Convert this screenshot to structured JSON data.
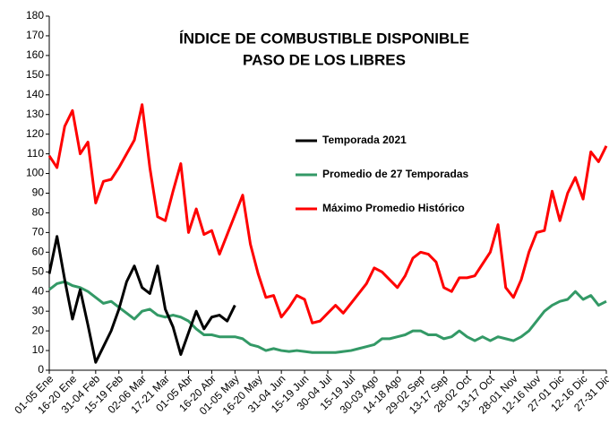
{
  "chart_data": {
    "type": "line",
    "title": "ÍNDICE DE COMBUSTIBLE DISPONIBLE",
    "subtitle": "PASO DE LOS LIBRES",
    "categories": [
      "01-05 Ene",
      null,
      null,
      "16-20 Ene",
      null,
      null,
      "31-04 Feb",
      null,
      null,
      "15-19 Feb",
      null,
      null,
      "02-06 Mar",
      null,
      null,
      "17-21 Mar",
      null,
      null,
      "01-05 Abr",
      null,
      null,
      "16-20 Abr",
      null,
      null,
      "01-05 May",
      null,
      null,
      "16-20 May",
      null,
      null,
      "31-04 Jun",
      null,
      null,
      "15-19 Jun",
      null,
      null,
      "30-04 Jul",
      null,
      null,
      "15-19 Jul",
      null,
      null,
      "30-03 Ago",
      null,
      null,
      "14-18 Ago",
      null,
      null,
      "29-02 Sep",
      null,
      null,
      "13-17 Sep",
      null,
      null,
      "28-02 Oct",
      null,
      null,
      "13-17 Oct",
      null,
      null,
      "28-01 Nov",
      null,
      null,
      "12-16 Nov",
      null,
      null,
      "27-01 Dic",
      null,
      null,
      "12-16 Dic",
      null,
      null,
      "27-31 Dic"
    ],
    "series": [
      {
        "name": "Temporada 2021",
        "color": "#000000",
        "values": [
          49,
          68,
          46,
          26,
          41,
          23,
          4,
          12,
          20,
          31,
          45,
          53,
          42,
          39,
          53,
          31,
          22,
          8,
          19,
          30,
          21,
          27,
          28,
          25,
          33,
          null,
          null,
          null,
          null,
          null,
          null,
          null,
          null,
          null,
          null,
          null,
          null,
          null,
          null,
          null,
          null,
          null,
          null,
          null,
          null,
          null,
          null,
          null,
          null,
          null,
          null,
          null,
          null,
          null,
          null,
          null,
          null,
          null,
          null,
          null,
          null,
          null,
          null,
          null,
          null,
          null,
          null,
          null,
          null,
          null,
          null,
          null,
          null
        ]
      },
      {
        "name": "Promedio de 27 Temporadas",
        "color": "#339966",
        "values": [
          41,
          44,
          45,
          43,
          42,
          40,
          37,
          34,
          35,
          32,
          29,
          26,
          30,
          31,
          28,
          27,
          28,
          27,
          25,
          21,
          18,
          18,
          17,
          17,
          17,
          16,
          13,
          12,
          10,
          11,
          10,
          9.5,
          10,
          9.5,
          9,
          9,
          9,
          9,
          9.5,
          10,
          11,
          12,
          13,
          16,
          16,
          17,
          18,
          20,
          20,
          18,
          18,
          16,
          17,
          20,
          17,
          15,
          17,
          15,
          17,
          16,
          15,
          17,
          20,
          25,
          30,
          33,
          35,
          36,
          40,
          36,
          38,
          33,
          35
        ]
      },
      {
        "name": "Máximo Promedio Histórico",
        "color": "#ff0000",
        "values": [
          109,
          103,
          124,
          132,
          110,
          116,
          85,
          96,
          97,
          103,
          110,
          117,
          135,
          103,
          78,
          76,
          91,
          105,
          70,
          82,
          69,
          71,
          59,
          69,
          79,
          89,
          64,
          49,
          37,
          38,
          27,
          32,
          38,
          36,
          24,
          25,
          29,
          33,
          29,
          34,
          39,
          44,
          52,
          50,
          46,
          42,
          48,
          57,
          60,
          59,
          55,
          42,
          40,
          47,
          47,
          48,
          54,
          60,
          74,
          42,
          37,
          46,
          60,
          70,
          71,
          91,
          76,
          90,
          98,
          87,
          111,
          106,
          114
        ]
      }
    ],
    "ylim": [
      0,
      180
    ],
    "yticks": [
      0,
      10,
      20,
      30,
      40,
      50,
      60,
      70,
      80,
      90,
      100,
      110,
      120,
      130,
      140,
      150,
      160,
      170,
      180
    ],
    "grid": false
  }
}
